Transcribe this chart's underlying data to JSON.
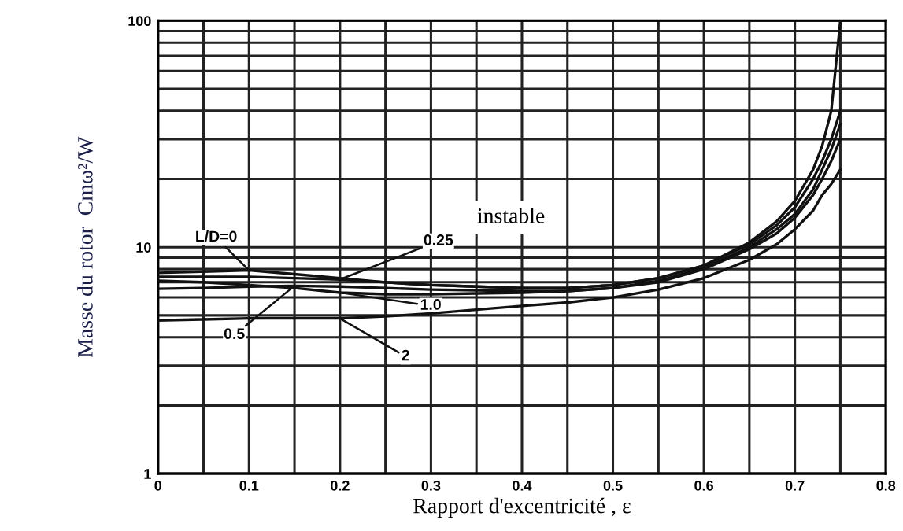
{
  "chart_data": {
    "type": "line",
    "xlabel": "Rapport d'excentricité , ε",
    "ylabel": "Masse du rotor  Cmω²/W",
    "x": [
      0,
      0.05,
      0.1,
      0.15,
      0.2,
      0.25,
      0.3,
      0.35,
      0.4,
      0.45,
      0.5,
      0.55,
      0.6,
      0.65,
      0.68,
      0.7,
      0.72,
      0.73,
      0.74,
      0.75
    ],
    "series": [
      {
        "name": "L/D=0",
        "color": "#111111",
        "values": [
          7.7,
          7.8,
          7.9,
          7.6,
          7.3,
          7.0,
          6.8,
          6.7,
          6.6,
          6.6,
          6.8,
          7.3,
          8.3,
          10.5,
          13,
          16,
          22,
          28,
          40,
          100
        ]
      },
      {
        "name": "0.25",
        "color": "#111111",
        "values": [
          7.4,
          7.4,
          7.4,
          7.3,
          7.2,
          7.0,
          6.8,
          6.7,
          6.6,
          6.6,
          6.8,
          7.3,
          8.3,
          10.3,
          12.5,
          15,
          20,
          24,
          30,
          40
        ]
      },
      {
        "name": "0.5",
        "color": "#111111",
        "values": [
          6.55,
          6.6,
          6.7,
          6.75,
          6.7,
          6.6,
          6.5,
          6.45,
          6.4,
          6.4,
          6.6,
          7.1,
          8.1,
          10,
          12,
          14,
          18,
          22,
          27,
          35
        ]
      },
      {
        "name": "1.0",
        "color": "#111111",
        "values": [
          7.1,
          7.0,
          6.8,
          6.6,
          6.3,
          6.2,
          6.2,
          6.25,
          6.3,
          6.4,
          6.6,
          7.0,
          8.0,
          9.8,
          11.5,
          13.5,
          17,
          20,
          24,
          30
        ]
      },
      {
        "name": "2",
        "color": "#111111",
        "values": [
          4.75,
          4.8,
          4.85,
          4.85,
          4.85,
          4.95,
          5.1,
          5.3,
          5.5,
          5.7,
          6.0,
          6.5,
          7.3,
          8.8,
          10.3,
          12,
          14.5,
          17,
          19,
          22
        ]
      }
    ],
    "annotations": [
      "instable"
    ],
    "log": "y",
    "grid": true,
    "marker": "none",
    "line_style": "solid",
    "xlim": [
      0,
      0.8
    ],
    "xticks": [
      0,
      {
        "value": 0.05,
        "label": null
      },
      0.1,
      {
        "value": 0.15,
        "label": null
      },
      0.2,
      {
        "value": 0.25,
        "label": null
      },
      0.3,
      {
        "value": 0.35,
        "label": null
      },
      0.4,
      {
        "value": 0.45,
        "label": null
      },
      0.5,
      {
        "value": 0.55,
        "label": null
      },
      0.6,
      {
        "value": 0.65,
        "label": null
      },
      0.7,
      {
        "value": 0.75,
        "label": null
      },
      0.8
    ],
    "ylim": [
      1,
      100
    ],
    "yticks": [
      1,
      {
        "value": 2,
        "label": null
      },
      {
        "value": 3,
        "label": null
      },
      {
        "value": 4,
        "label": null
      },
      {
        "value": 5,
        "label": null
      },
      {
        "value": 6,
        "label": null
      },
      {
        "value": 7,
        "label": null
      },
      {
        "value": 8,
        "label": null
      },
      {
        "value": 9,
        "label": null
      },
      10,
      {
        "value": 20,
        "label": null
      },
      {
        "value": 30,
        "label": null
      },
      {
        "value": 40,
        "label": null
      },
      {
        "value": 50,
        "label": null
      },
      {
        "value": 60,
        "label": null
      },
      {
        "value": 70,
        "label": null
      },
      {
        "value": 80,
        "label": null
      },
      {
        "value": 90,
        "label": null
      },
      100
    ]
  }
}
